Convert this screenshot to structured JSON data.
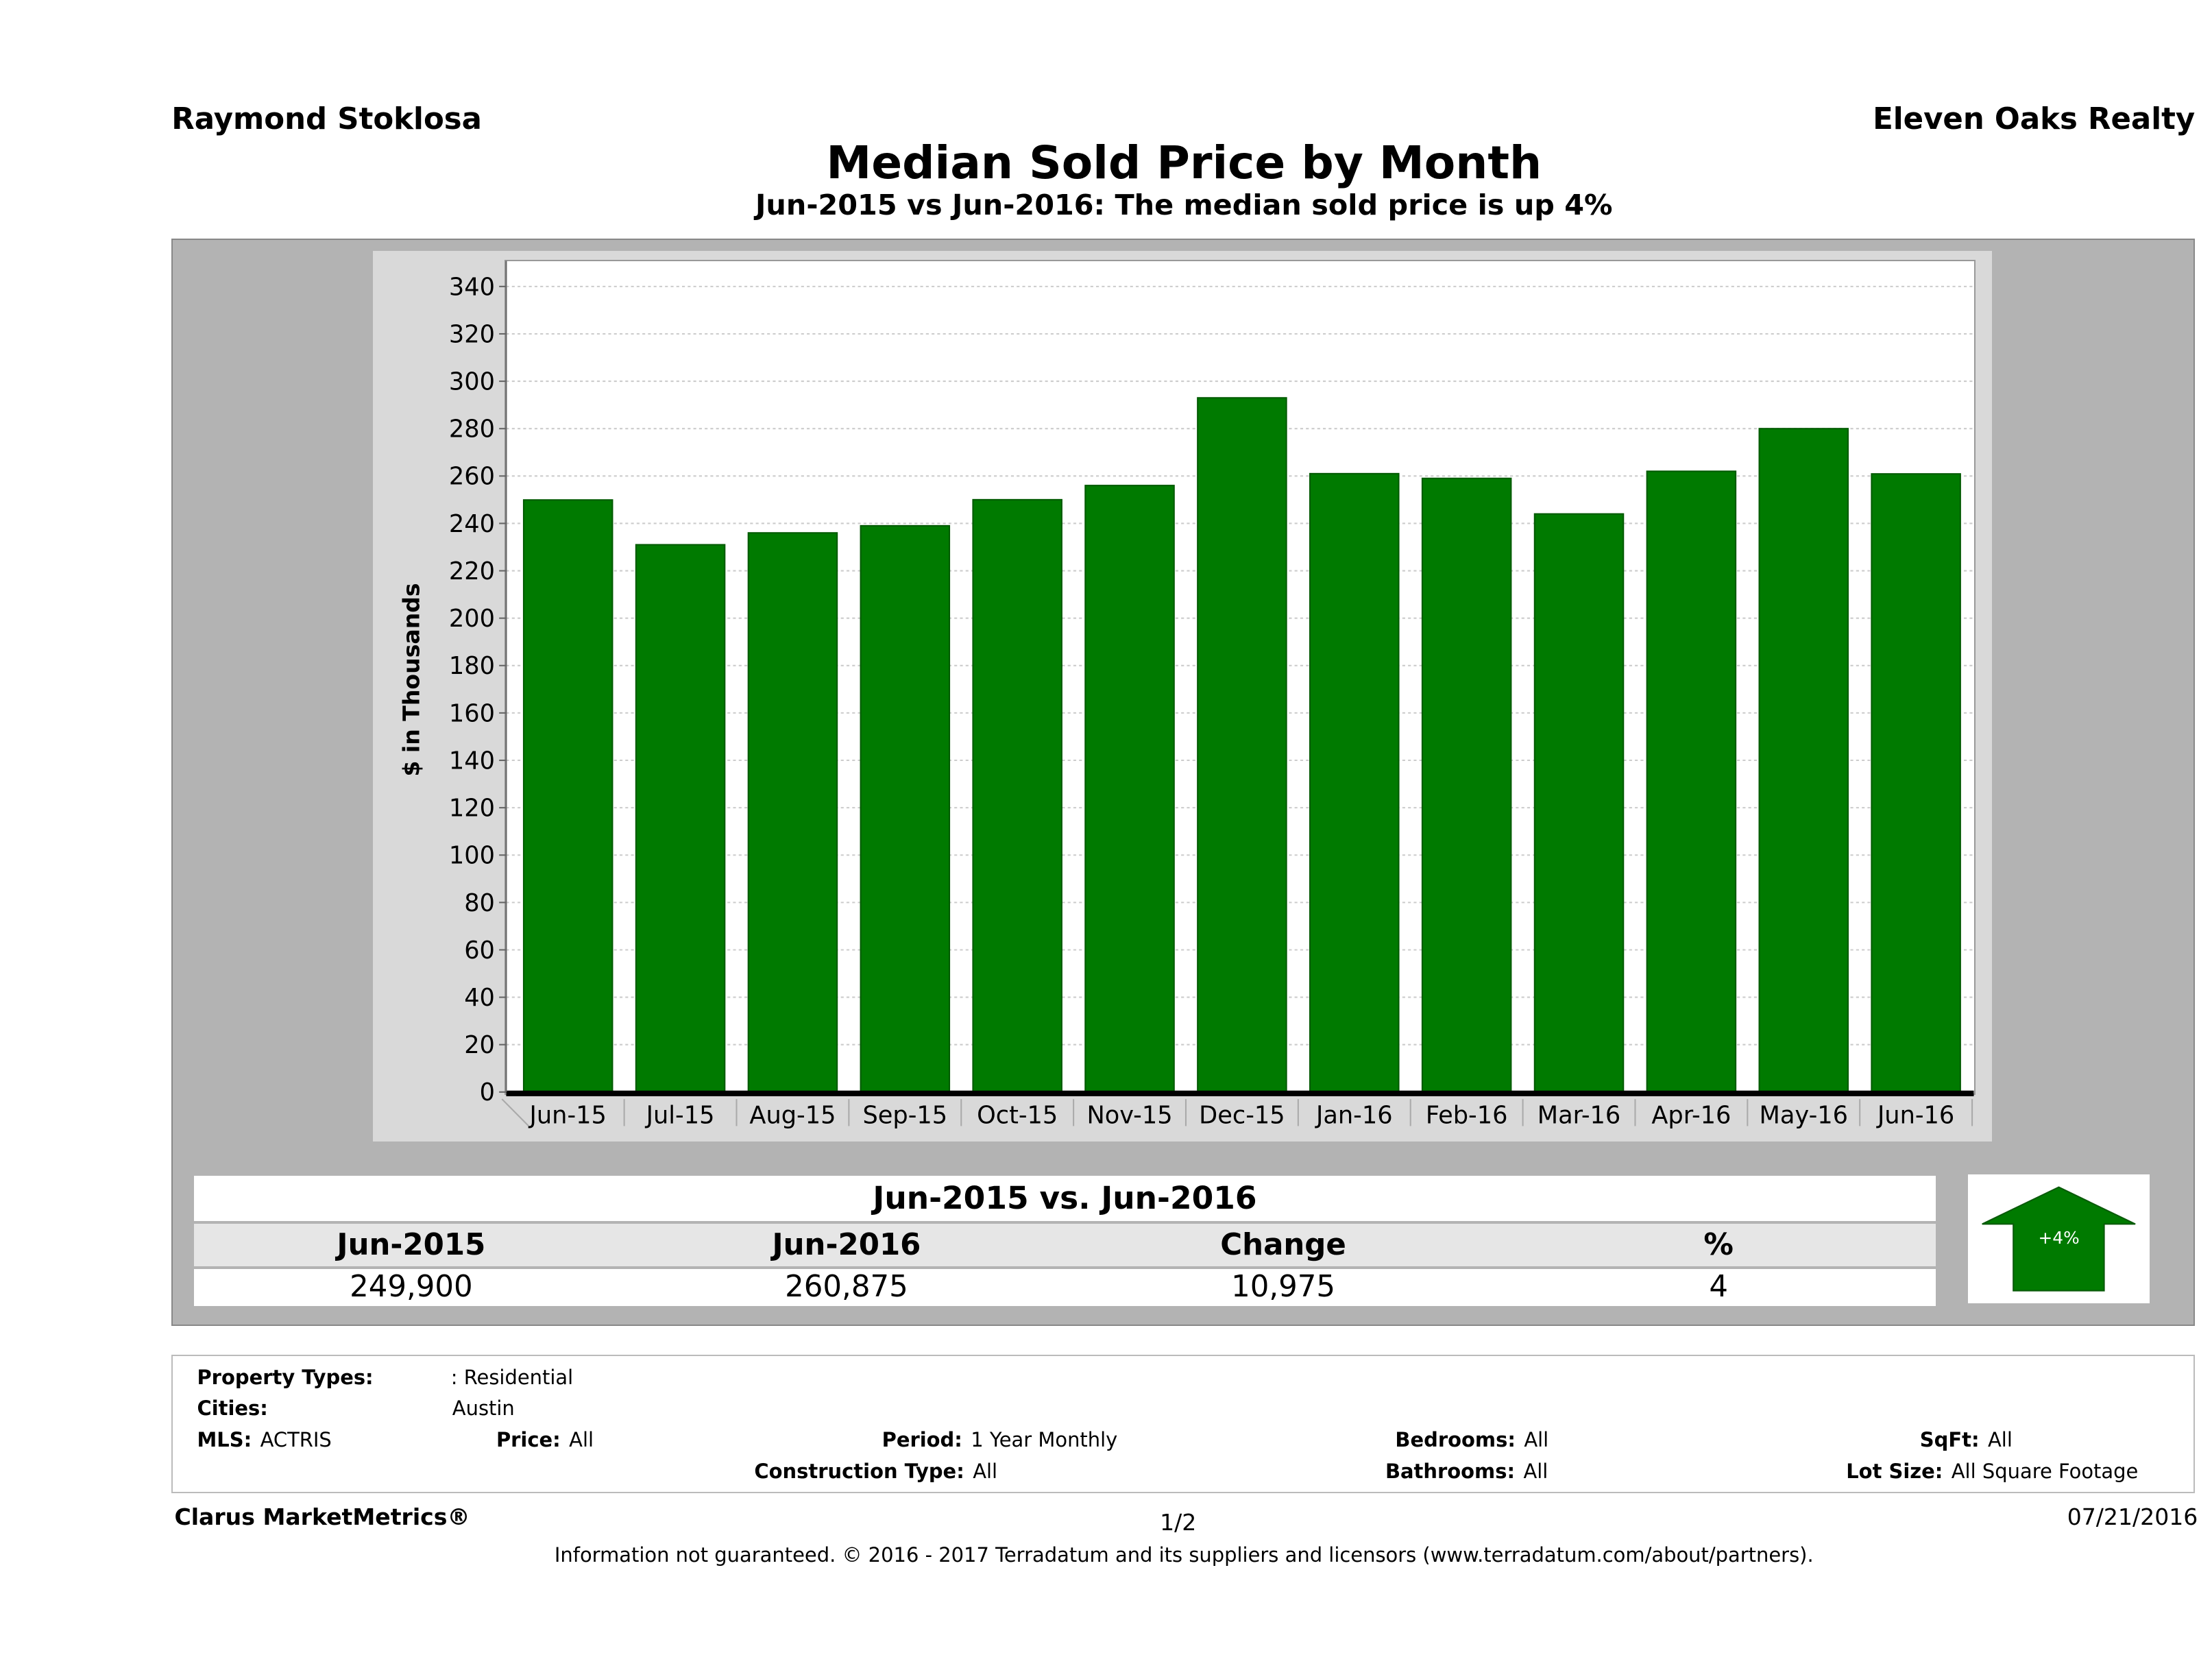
{
  "header": {
    "agent": "Raymond Stoklosa",
    "broker": "Eleven Oaks Realty",
    "title": "Median Sold Price by Month",
    "subtitle": "Jun-2015 vs Jun-2016: The median sold price is up 4%"
  },
  "chart_data": {
    "type": "bar",
    "ylabel": "$ in Thousands",
    "ylim": [
      0,
      340
    ],
    "yticks": [
      0,
      20,
      40,
      60,
      80,
      100,
      120,
      140,
      160,
      180,
      200,
      220,
      240,
      260,
      280,
      300,
      320,
      340
    ],
    "grid": true,
    "bar_color": "#007a00",
    "categories": [
      "Jun-15",
      "Jul-15",
      "Aug-15",
      "Sep-15",
      "Oct-15",
      "Nov-15",
      "Dec-15",
      "Jan-16",
      "Feb-16",
      "Mar-16",
      "Apr-16",
      "May-16",
      "Jun-16"
    ],
    "values": [
      249.9,
      231,
      236,
      239,
      250,
      256,
      293,
      261,
      259,
      244,
      262,
      280,
      260.9
    ]
  },
  "comparison": {
    "title": "Jun-2015 vs. Jun-2016",
    "headers": [
      "Jun-2015",
      "Jun-2016",
      "Change",
      "%"
    ],
    "values": [
      "249,900",
      "260,875",
      "10,975",
      "4"
    ],
    "badge": "+4%",
    "badge_color": "#007a00"
  },
  "criteria": {
    "property_types_label": "Property Types:",
    "property_types": ": Residential",
    "cities_label": "Cities:",
    "cities": "Austin",
    "mls_label": "MLS:",
    "mls": "ACTRIS",
    "price_label": "Price:",
    "price": "All",
    "period_label": "Period:",
    "period": "1 Year Monthly",
    "bedrooms_label": "Bedrooms:",
    "bedrooms": "All",
    "sqft_label": "SqFt:",
    "sqft": "All",
    "construction_label": "Construction Type:",
    "construction": "All",
    "bathrooms_label": "Bathrooms:",
    "bathrooms": "All",
    "lot_label": "Lot Size:",
    "lot": "All Square Footage"
  },
  "footer": {
    "brand": "Clarus MarketMetrics®",
    "page": "1/2",
    "date": "07/21/2016",
    "note": "Information not guaranteed. © 2016 - 2017 Terradatum and its suppliers and licensors (www.terradatum.com/about/partners)."
  }
}
